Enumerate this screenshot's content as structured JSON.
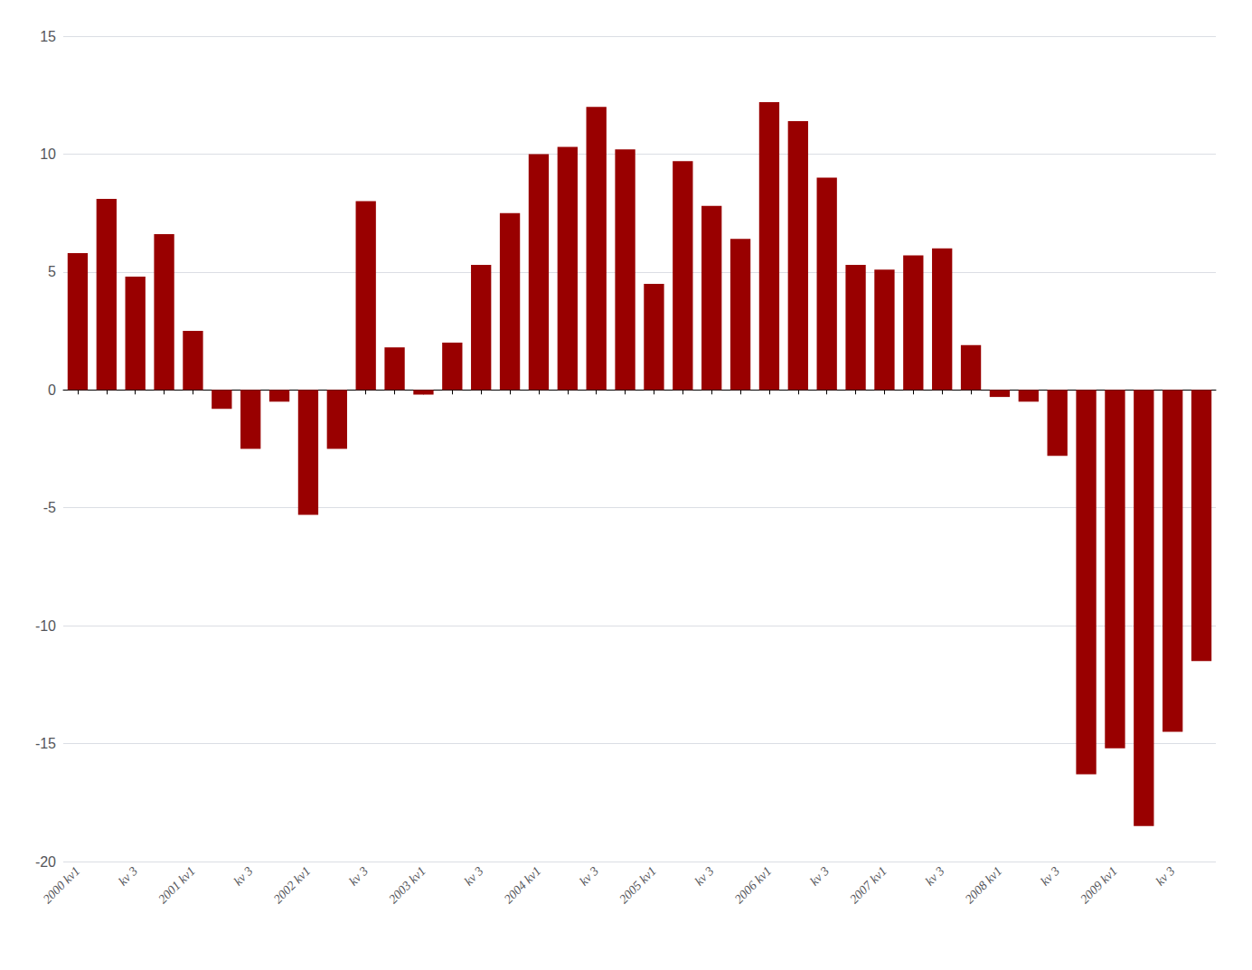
{
  "chart_data": {
    "type": "bar",
    "categories": [
      "2000 kv1",
      null,
      "kv 3",
      null,
      "2001 kv1",
      null,
      "kv 3",
      null,
      "2002 kv1",
      null,
      "kv 3",
      null,
      "2003 kv1",
      null,
      "kv 3",
      null,
      "2004 kv1",
      null,
      "kv 3",
      null,
      "2005 kv1",
      null,
      "kv 3",
      null,
      "2006 kv1",
      null,
      "kv 3",
      null,
      "2007 kv1",
      null,
      "kv 3",
      null,
      "2008 kv1",
      null,
      "kv 3",
      null,
      "2009 kv1",
      null,
      "kv 3",
      null
    ],
    "values": [
      5.8,
      8.1,
      4.8,
      6.6,
      2.5,
      -0.8,
      -2.5,
      -0.5,
      -5.3,
      -2.5,
      8.0,
      1.8,
      -0.2,
      2.0,
      5.3,
      7.5,
      10.0,
      10.3,
      12.0,
      10.2,
      4.5,
      9.7,
      7.8,
      6.4,
      12.2,
      11.4,
      9.0,
      5.3,
      5.1,
      5.7,
      6.0,
      1.9,
      -0.3,
      -0.5,
      -2.8,
      -16.3,
      -15.2,
      -18.5,
      -14.5,
      -11.5
    ],
    "color": "#990000",
    "ylim": [
      -20,
      15
    ],
    "yticks": [
      -20,
      -15,
      -10,
      -5,
      0,
      5,
      10,
      15
    ],
    "grid": true
  }
}
